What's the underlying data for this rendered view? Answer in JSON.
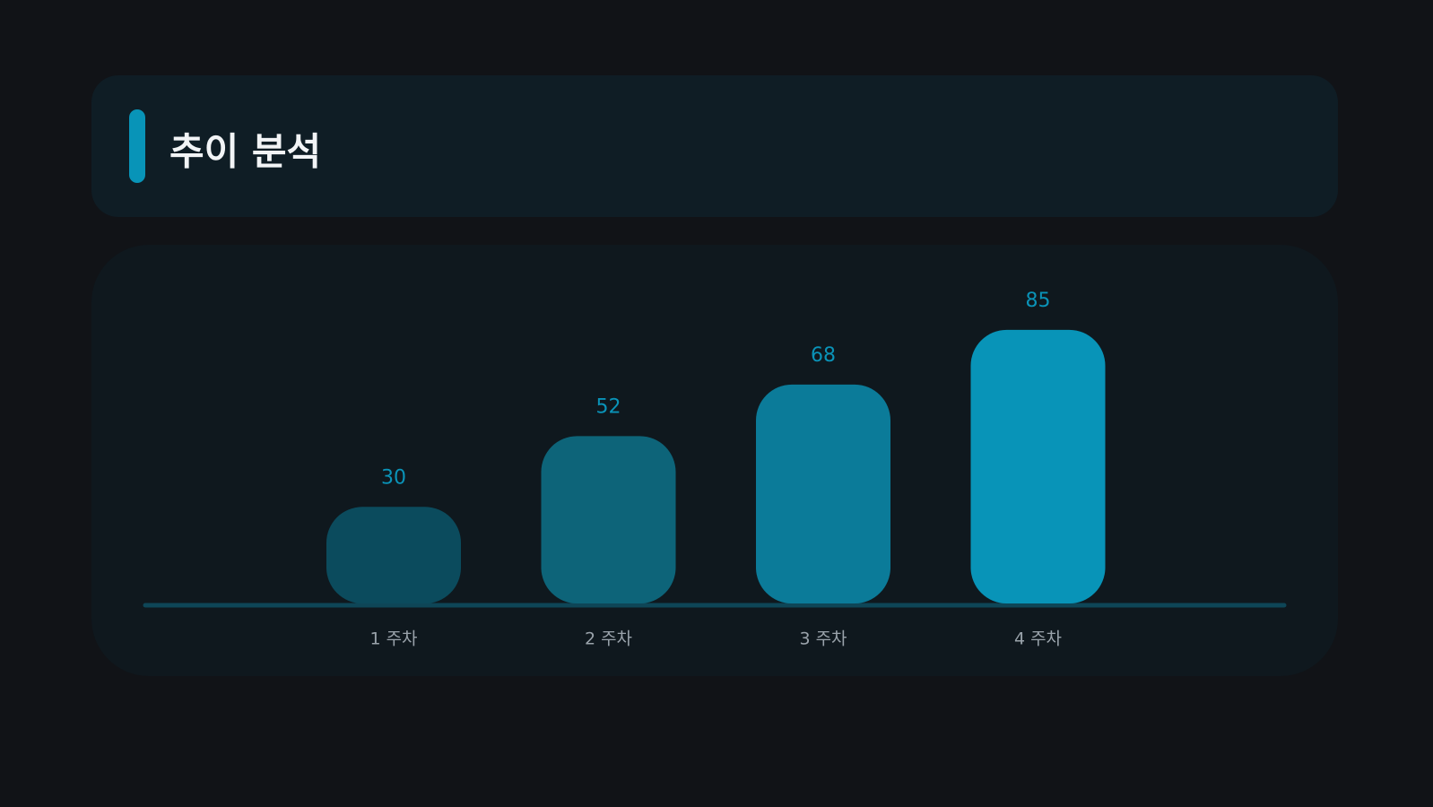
{
  "chart_data": {
    "type": "bar",
    "title": "추이 분석",
    "categories": [
      "1 주차",
      "2 주차",
      "3 주차",
      "4 주차"
    ],
    "values": [
      30,
      52,
      68,
      85
    ],
    "colors": [
      "#0b4b5d",
      "#0d6479",
      "#0b7b99",
      "#0894b8"
    ],
    "ylim": [
      0,
      100
    ]
  }
}
